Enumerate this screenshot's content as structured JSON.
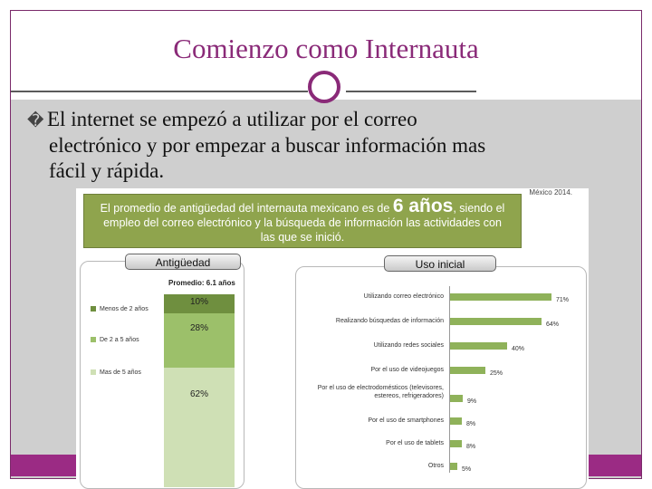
{
  "slide": {
    "title": "Comienzo como Internauta",
    "bullet_glyph": "�",
    "bullet_line1": "El internet se empezó a utilizar por el correo",
    "bullet_line2": "electrónico y por empezar a buscar información mas",
    "bullet_line3": "fácil y rápida.",
    "accent_color": "#8a2a78",
    "bar_color": "#9b2b84"
  },
  "figure": {
    "source": "México 2014.",
    "banner_part1": "El promedio de antigüedad del internauta mexicano es de",
    "banner_big": "6 años",
    "banner_part2": ", siendo el",
    "banner_line2": "empleo del correo electrónico y la búsqueda de información las actividades con",
    "banner_line3": "las que se inició.",
    "banner_color": "#8fa44d"
  },
  "antiguedad": {
    "tab": "Antigüedad",
    "promedio": "Promedio: 6.1 años",
    "segments": [
      {
        "label": "10%",
        "value": 10,
        "color": "#6f8f3f"
      },
      {
        "label": "28%",
        "value": 28,
        "color": "#9cc06a"
      },
      {
        "label": "62%",
        "value": 62,
        "color": "#cfe0b5"
      }
    ],
    "legend": [
      {
        "label": "Menos de 2 años",
        "color": "#6f8f3f"
      },
      {
        "label": "De 2 a 5 años",
        "color": "#9cc06a"
      },
      {
        "label": "Mas de 5 años",
        "color": "#cfe0b5"
      }
    ]
  },
  "chart_data": {
    "type": "bar",
    "title": "Uso inicial",
    "categories": [
      "Utilizando correo electrónico",
      "Realizando búsquedas de información",
      "Utilizando redes sociales",
      "Por el uso de videojuegos",
      "Por el uso de electrodomésticos (televisores, estereos, refrigeradores)",
      "Por el uso de smartphones",
      "Por el uso de tablets",
      "Otros"
    ],
    "values": [
      71,
      64,
      40,
      25,
      9,
      8,
      8,
      5
    ],
    "value_labels": [
      "71%",
      "64%",
      "40%",
      "25%",
      "9%",
      "8%",
      "8%",
      "5%"
    ],
    "orientation": "horizontal",
    "xlim": [
      0,
      75
    ],
    "bar_color": "#8fb25a"
  }
}
